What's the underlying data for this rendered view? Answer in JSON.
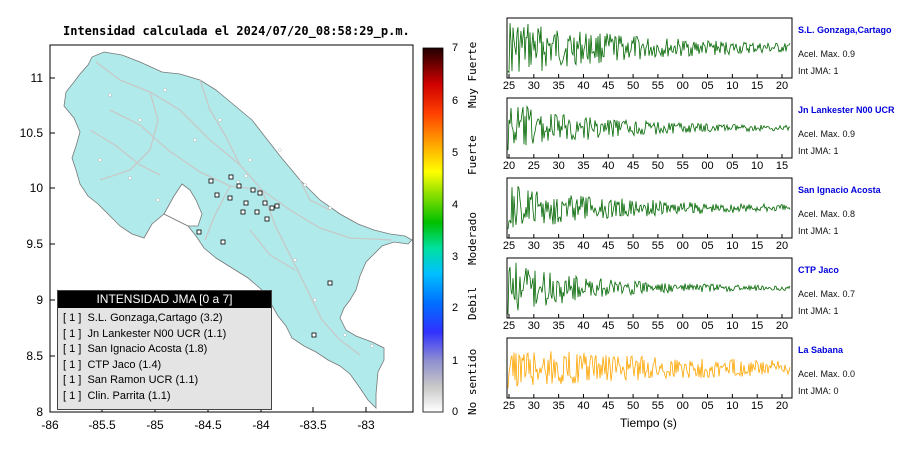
{
  "map": {
    "title": "Intensidad calculada el 2024/07/20_08:58:29_p.m.",
    "lat_ticks": [
      "11",
      "10.5",
      "10",
      "9.5",
      "9",
      "8.5",
      "8"
    ],
    "lon_ticks": [
      "-86",
      "-85.5",
      "-85",
      "-84.5",
      "-84",
      "-83.5",
      "-83"
    ],
    "land_color": "#b0eaea",
    "legend": {
      "title": "INTENSIDAD JMA [0 a 7]",
      "rows": [
        "[ 1 ]  S.L. Gonzaga,Cartago (3.2)",
        "[ 1 ]  Jn Lankester N00 UCR (1.1)",
        "[ 1 ]  San Ignacio Acosta (1.8)",
        "[ 1 ]  CTP Jaco (1.4)",
        "[ 1 ]  San Ramon UCR (1.1)",
        "[ 1 ]  Clin. Parrita (1.1)"
      ]
    }
  },
  "colorbar": {
    "ticks": [
      "7",
      "6",
      "5",
      "4",
      "3",
      "2",
      "1",
      "0"
    ],
    "categories": [
      "Muy Fuerte",
      "Fuerte",
      "Moderado",
      "Debil",
      "No sentido"
    ]
  },
  "stations": [
    {
      "name": "S.L. Gonzaga,Cartago",
      "acel": "Acel. Max. 0.9",
      "jma": "Int JMA: 1",
      "color": "#006600",
      "ticks": [
        "25",
        "30",
        "35",
        "40",
        "45",
        "50",
        "55",
        "00",
        "05",
        "10",
        "15",
        "20"
      ],
      "amp": 1.0,
      "decay": 2.2
    },
    {
      "name": "Jn Lankester N00 UCR",
      "acel": "Acel. Max. 0.9",
      "jma": "Int JMA: 1",
      "color": "#006600",
      "ticks": [
        "20",
        "25",
        "30",
        "35",
        "40",
        "45",
        "50",
        "55",
        "00",
        "05",
        "10",
        "15"
      ],
      "amp": 0.9,
      "decay": 3.2
    },
    {
      "name": "San Ignacio Acosta",
      "acel": "Acel. Max. 0.8",
      "jma": "Int JMA: 1",
      "color": "#006600",
      "ticks": [
        "25",
        "30",
        "35",
        "40",
        "45",
        "50",
        "55",
        "00",
        "05",
        "10",
        "15",
        "20"
      ],
      "amp": 0.8,
      "decay": 2.5
    },
    {
      "name": "CTP Jaco",
      "acel": "Acel. Max. 0.7",
      "jma": "Int JMA: 1",
      "color": "#006600",
      "ticks": [
        "25",
        "30",
        "35",
        "40",
        "45",
        "50",
        "55",
        "00",
        "05",
        "10",
        "15",
        "20"
      ],
      "amp": 0.95,
      "decay": 3.5
    },
    {
      "name": "La Sabana",
      "acel": "Acel. Max. 0.0",
      "jma": "Int JMA: 0",
      "color": "#ffa500",
      "ticks": [
        "25",
        "30",
        "35",
        "40",
        "45",
        "50",
        "55",
        "00",
        "05",
        "10",
        "15",
        "20"
      ],
      "amp": 0.75,
      "decay": 1.2
    }
  ],
  "time_axis_label": "Tiempo (s)",
  "chart_data": [
    {
      "type": "heatmap",
      "title": "Intensidad calculada el 2024/07/20_08:58:29_p.m.",
      "xlabel": "",
      "ylabel": "",
      "xlim": [
        -86,
        -82.5
      ],
      "ylim": [
        8,
        11.3
      ],
      "x_ticks": [
        -86,
        -85.5,
        -85,
        -84.5,
        -84,
        -83.5,
        -83
      ],
      "y_ticks": [
        8,
        8.5,
        9,
        9.5,
        10,
        10.5,
        11
      ],
      "colorbar": {
        "range": [
          0,
          7
        ],
        "labels": [
          "No sentido",
          "Debil",
          "Moderado",
          "Fuerte",
          "Muy Fuerte"
        ]
      },
      "legend": "bottom-left",
      "series": [
        {
          "name": "S.L. Gonzaga,Cartago",
          "jma": 1,
          "intensity": 3.2
        },
        {
          "name": "Jn Lankester N00 UCR",
          "jma": 1,
          "intensity": 1.1
        },
        {
          "name": "San Ignacio Acosta",
          "jma": 1,
          "intensity": 1.8
        },
        {
          "name": "CTP Jaco",
          "jma": 1,
          "intensity": 1.4
        },
        {
          "name": "San Ramon UCR",
          "jma": 1,
          "intensity": 1.1
        },
        {
          "name": "Clin. Parrita",
          "jma": 1,
          "intensity": 1.1
        }
      ]
    },
    {
      "type": "line",
      "xlabel": "Tiempo (s)",
      "series": [
        {
          "name": "S.L. Gonzaga,Cartago",
          "acel_max": 0.9,
          "int_jma": 1
        },
        {
          "name": "Jn Lankester N00 UCR",
          "acel_max": 0.9,
          "int_jma": 1
        },
        {
          "name": "San Ignacio Acosta",
          "acel_max": 0.8,
          "int_jma": 1
        },
        {
          "name": "CTP Jaco",
          "acel_max": 0.7,
          "int_jma": 1
        },
        {
          "name": "La Sabana",
          "acel_max": 0.0,
          "int_jma": 0
        }
      ]
    }
  ]
}
